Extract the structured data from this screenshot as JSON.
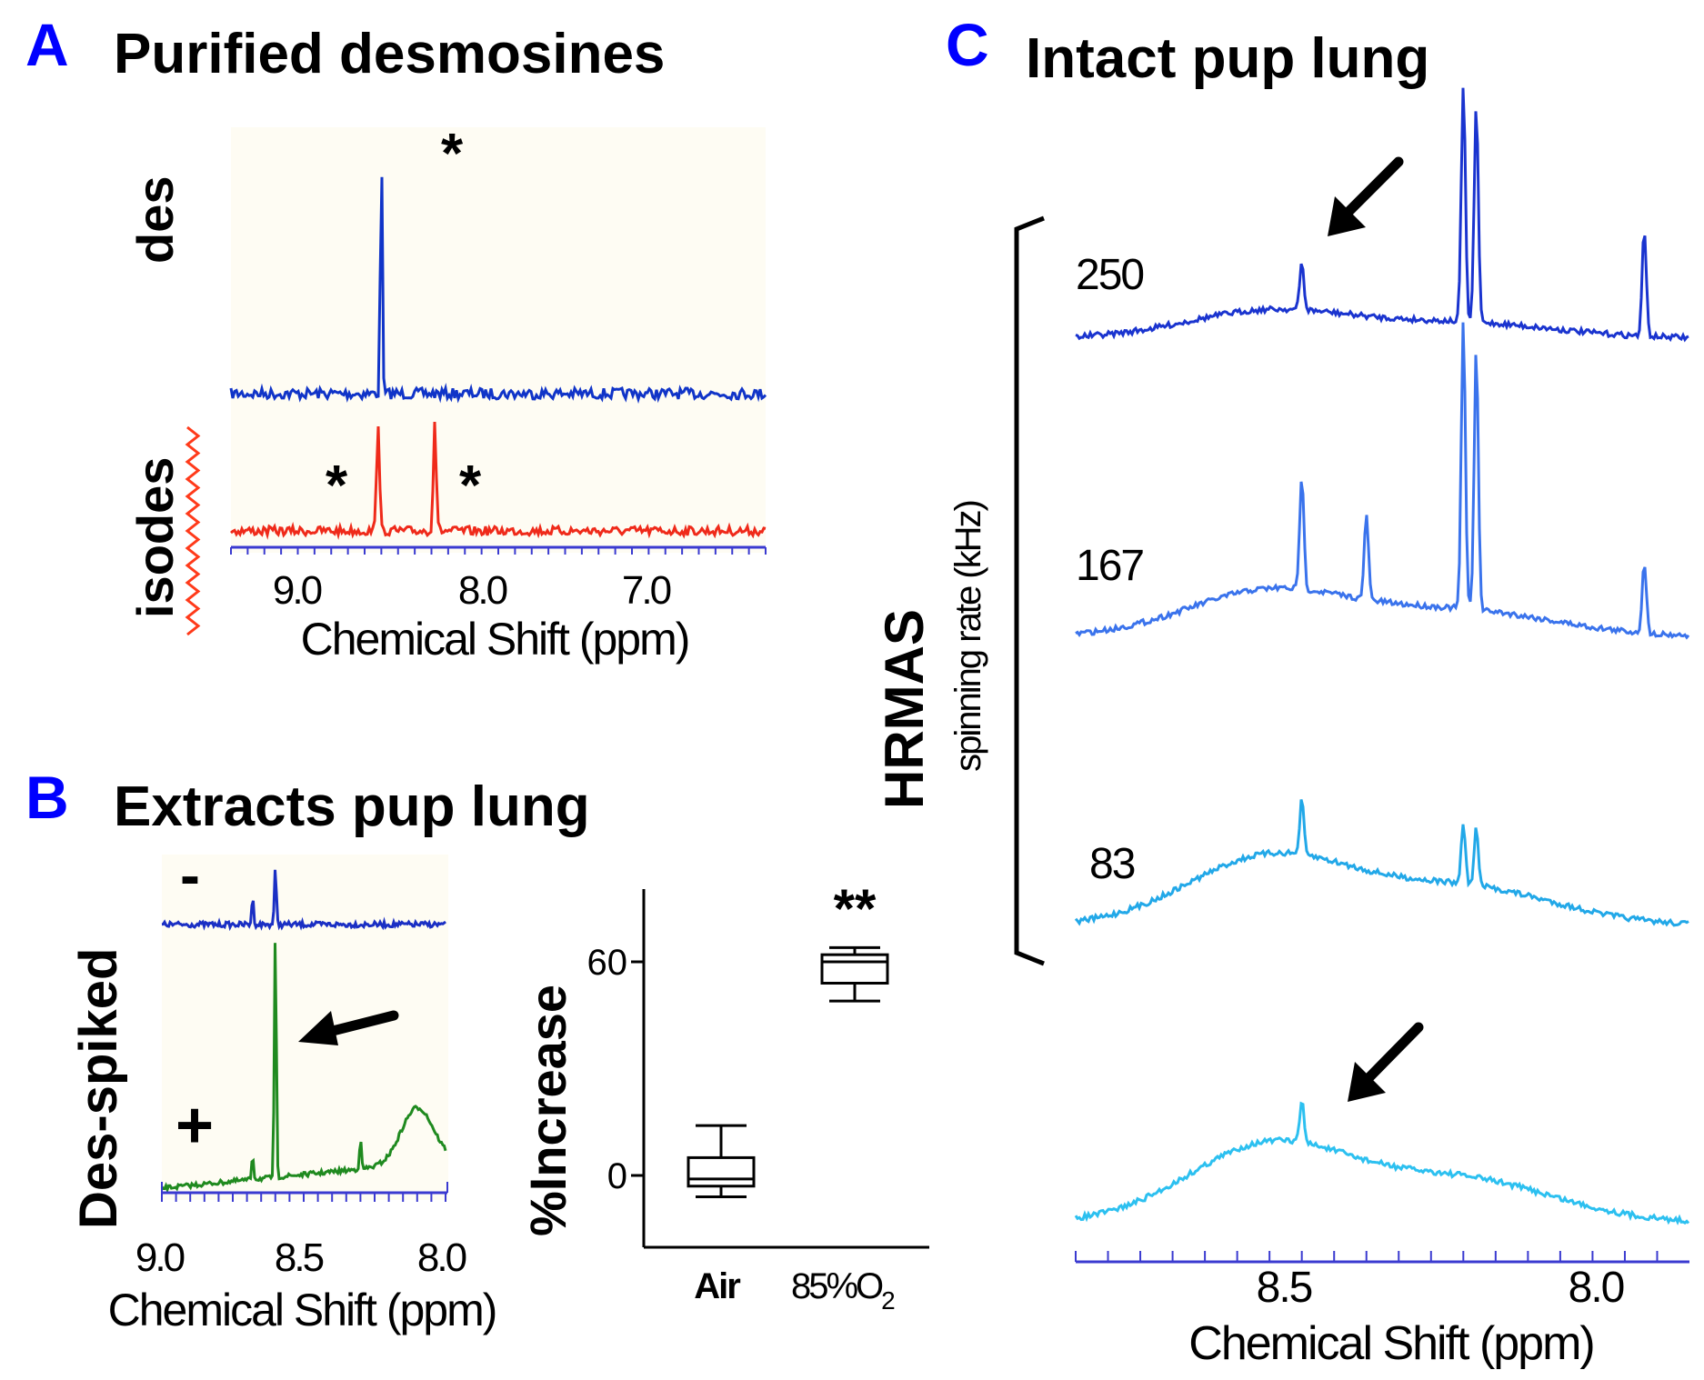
{
  "colors": {
    "letter": "#0000ff",
    "des": "#1034c8",
    "isodes": "#ef2a1a",
    "spiked_minus": "#1a2fc4",
    "spiked_plus": "#1f8a1f",
    "c250": "#1a34cf",
    "c167": "#3a73ec",
    "c83": "#22a8e8",
    "cbottom": "#2cc0f0",
    "axis_blue": "#3a3ad0",
    "zigzag": "#ff3a1a"
  },
  "panelA": {
    "letter": "A",
    "title": "Purified desmosines",
    "label_des": "des",
    "label_isodes": "isodes",
    "star": "*",
    "xlabel": "Chemical Shift (ppm)",
    "ticks": [
      "9.0",
      "8.0",
      "7.0"
    ]
  },
  "panelB": {
    "letter": "B",
    "title": "Extracts pup lung",
    "minus": "-",
    "plus": "+",
    "ylabel": "Des-spiked",
    "xlabel": "Chemical Shift (ppm)",
    "ticks": [
      "9.0",
      "8.5",
      "8.0"
    ]
  },
  "panelBbox": {
    "ylabel": "%Increase",
    "yticks": [
      "60",
      "0"
    ],
    "sig": "**",
    "cat_air": "Air",
    "cat_o2_main": "85%O",
    "cat_o2_sub": "2"
  },
  "panelC": {
    "letter": "C",
    "title": "Intact pup lung",
    "rate_250": "250",
    "rate_167": "167",
    "rate_83": "83",
    "ylabel_main": "HRMAS",
    "ylabel_sub": "spinning rate (kHz)",
    "xlabel": "Chemical Shift (ppm)",
    "ticks": [
      "8.5",
      "8.0"
    ]
  },
  "chart_data": [
    {
      "type": "line",
      "panel": "A",
      "xlabel": "Chemical Shift (ppm)",
      "xlim": [
        9.5,
        6.3
      ],
      "series": [
        {
          "name": "des",
          "peaks": [
            {
              "x": 8.6,
              "height": 1.0
            }
          ]
        },
        {
          "name": "isodes",
          "peaks": [
            {
              "x": 8.62,
              "height": 0.42
            },
            {
              "x": 8.28,
              "height": 0.42
            }
          ]
        }
      ]
    },
    {
      "type": "line",
      "panel": "B",
      "xlabel": "Chemical Shift (ppm)",
      "xlim": [
        9.0,
        8.0
      ],
      "series": [
        {
          "name": "-",
          "peaks": [
            {
              "x": 8.6,
              "height": 0.25
            },
            {
              "x": 8.68,
              "height": 0.12
            }
          ]
        },
        {
          "name": "+",
          "peaks": [
            {
              "x": 8.6,
              "height": 1.0
            },
            {
              "x": 8.68,
              "height": 0.1
            },
            {
              "x": 8.3,
              "height": 0.12
            }
          ],
          "broad": {
            "x": 8.1,
            "height": 0.22
          }
        }
      ]
    },
    {
      "type": "box",
      "panel": "B",
      "ylabel": "%Increase",
      "ylim": [
        -15,
        80
      ],
      "categories": [
        "Air",
        "85%O2"
      ],
      "boxes": [
        {
          "min": -6,
          "q1": -3,
          "median": -1,
          "q3": 5,
          "max": 14
        },
        {
          "min": 49,
          "q1": 54,
          "median": 60,
          "q3": 62,
          "max": 64
        }
      ],
      "annotations": [
        "**"
      ]
    },
    {
      "type": "line",
      "panel": "C",
      "xlabel": "Chemical Shift (ppm)",
      "xlim": [
        8.8,
        7.85
      ],
      "series": [
        {
          "name": "250",
          "peaks": [
            {
              "x": 8.2,
              "height": 1.0
            },
            {
              "x": 8.18,
              "height": 0.92
            },
            {
              "x": 8.45,
              "height": 0.2
            },
            {
              "x": 7.92,
              "height": 0.45
            }
          ]
        },
        {
          "name": "167",
          "peaks": [
            {
              "x": 8.2,
              "height": 1.0
            },
            {
              "x": 8.18,
              "height": 0.92
            },
            {
              "x": 8.45,
              "height": 0.4
            },
            {
              "x": 8.35,
              "height": 0.3
            },
            {
              "x": 7.92,
              "height": 0.25
            }
          ]
        },
        {
          "name": "83",
          "peaks": [
            {
              "x": 8.45,
              "height": 0.4
            },
            {
              "x": 8.2,
              "height": 0.45
            },
            {
              "x": 8.18,
              "height": 0.42
            }
          ]
        },
        {
          "name": "",
          "peaks": [
            {
              "x": 8.45,
              "height": 0.5
            }
          ]
        }
      ]
    }
  ]
}
